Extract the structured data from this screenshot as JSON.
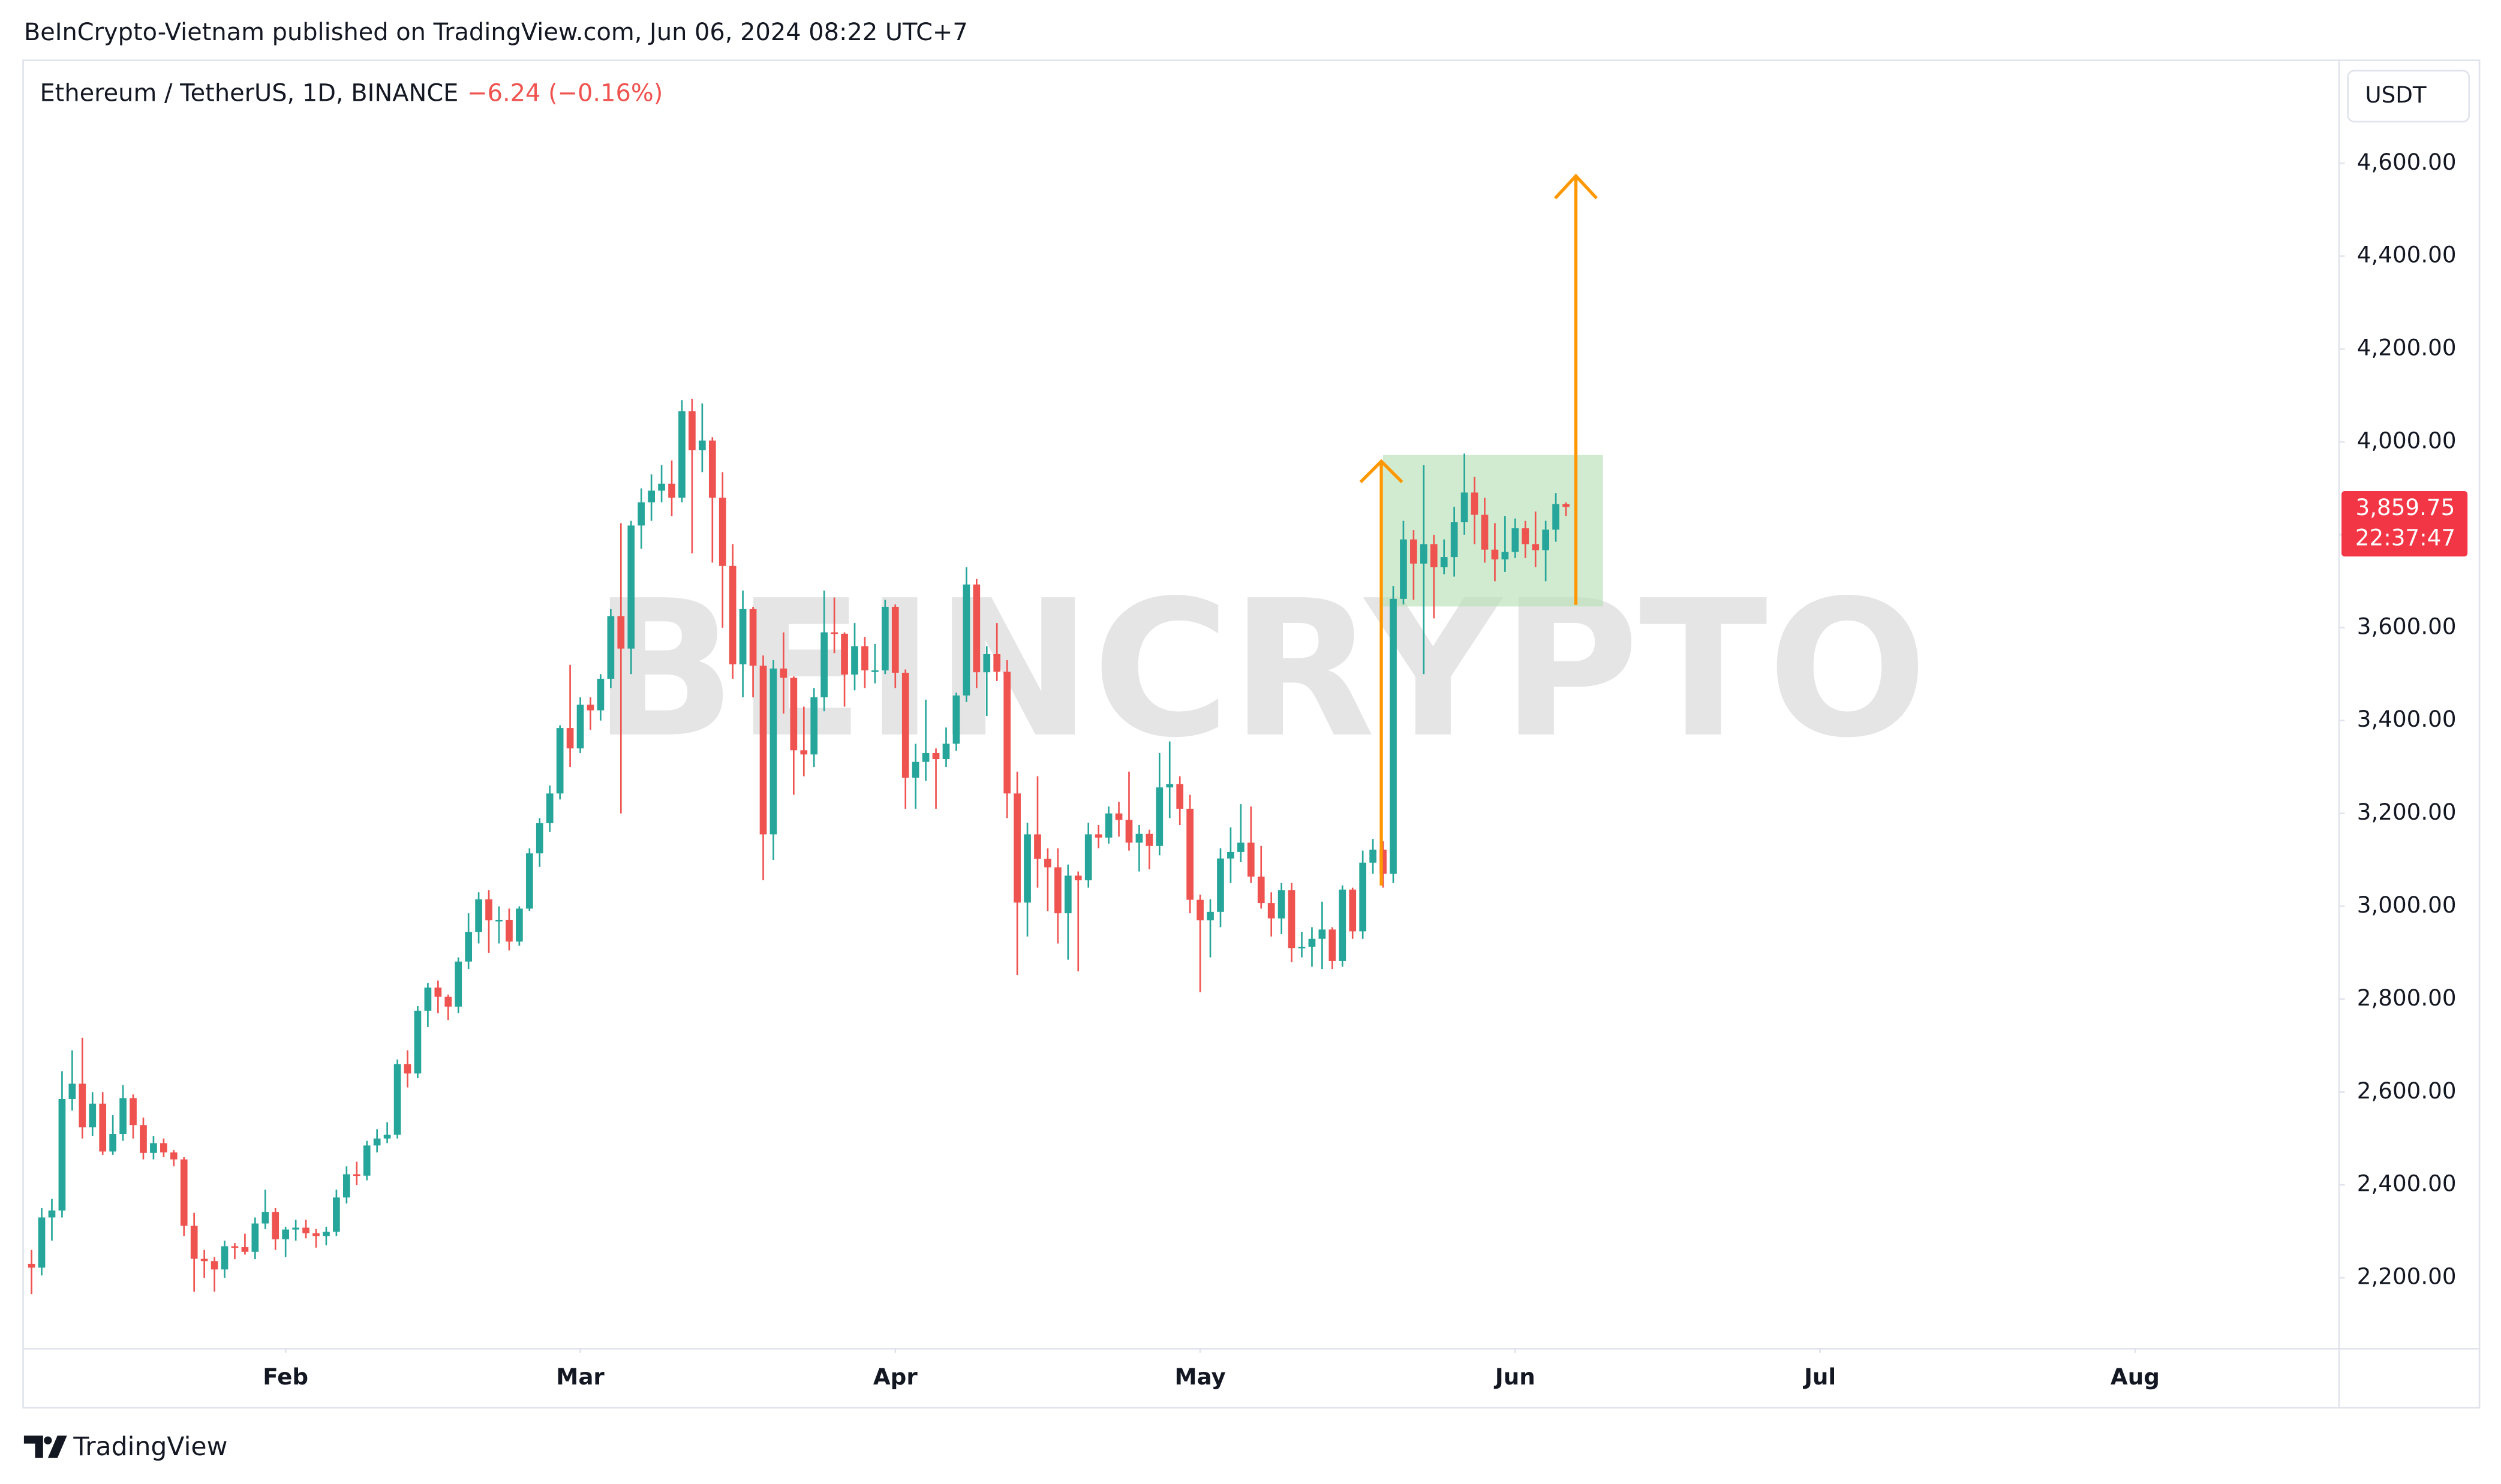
{
  "header": "BeInCrypto-Vietnam published on TradingView.com, Jun 06, 2024 08:22 UTC+7",
  "footer": "TradingView",
  "chart_data": {
    "type": "candlestick",
    "title": "Ethereum / TetherUS, 1D, BINANCE",
    "change_label": "−6.24 (−0.16%)",
    "currency": "USDT",
    "watermark": "BEINCRYPTO",
    "up_color": "#26a69a",
    "down_color": "#ef5350",
    "grid": false,
    "xlim": [
      -0.75,
      227
    ],
    "xticks": [
      {
        "value": 25,
        "label": "Feb"
      },
      {
        "value": 54,
        "label": "Mar"
      },
      {
        "value": 85,
        "label": "Apr"
      },
      {
        "value": 115,
        "label": "May"
      },
      {
        "value": 146,
        "label": "Jun"
      },
      {
        "value": 176,
        "label": "Jul"
      },
      {
        "value": 207,
        "label": "Aug"
      }
    ],
    "ylim": [
      2049,
      4820
    ],
    "yticks": [
      {
        "value": 2200,
        "label": "2,200.00"
      },
      {
        "value": 2400,
        "label": "2,400.00"
      },
      {
        "value": 2600,
        "label": "2,600.00"
      },
      {
        "value": 2800,
        "label": "2,800.00"
      },
      {
        "value": 3000,
        "label": "3,000.00"
      },
      {
        "value": 3200,
        "label": "3,200.00"
      },
      {
        "value": 3400,
        "label": "3,400.00"
      },
      {
        "value": 3600,
        "label": "3,600.00"
      },
      {
        "value": 3800,
        "label": "3,800.00"
      },
      {
        "value": 4000,
        "label": "4,000.00"
      },
      {
        "value": 4200,
        "label": "4,200.00"
      },
      {
        "value": 4400,
        "label": "4,400.00"
      },
      {
        "value": 4600,
        "label": "4,600.00"
      }
    ],
    "last_price": {
      "value": 3859.75,
      "label": "3,859.75"
    },
    "countdown": "22:37:47",
    "ohlc": [
      [
        2230,
        2260,
        2165,
        2222
      ],
      [
        2222,
        2350,
        2205,
        2330
      ],
      [
        2330,
        2370,
        2280,
        2345
      ],
      [
        2345,
        2645,
        2330,
        2585
      ],
      [
        2585,
        2690,
        2560,
        2618
      ],
      [
        2618,
        2717,
        2500,
        2524
      ],
      [
        2524,
        2600,
        2505,
        2575
      ],
      [
        2575,
        2600,
        2465,
        2472
      ],
      [
        2472,
        2550,
        2465,
        2510
      ],
      [
        2510,
        2615,
        2495,
        2587
      ],
      [
        2587,
        2595,
        2500,
        2529
      ],
      [
        2529,
        2545,
        2455,
        2469
      ],
      [
        2469,
        2505,
        2455,
        2490
      ],
      [
        2490,
        2500,
        2460,
        2470
      ],
      [
        2470,
        2475,
        2440,
        2455
      ],
      [
        2455,
        2460,
        2290,
        2312
      ],
      [
        2312,
        2340,
        2170,
        2241
      ],
      [
        2241,
        2260,
        2200,
        2236
      ],
      [
        2236,
        2245,
        2170,
        2218
      ],
      [
        2218,
        2280,
        2200,
        2268
      ],
      [
        2268,
        2275,
        2240,
        2266
      ],
      [
        2266,
        2295,
        2250,
        2256
      ],
      [
        2256,
        2330,
        2240,
        2317
      ],
      [
        2317,
        2390,
        2305,
        2342
      ],
      [
        2342,
        2350,
        2260,
        2283
      ],
      [
        2283,
        2310,
        2245,
        2304
      ],
      [
        2304,
        2325,
        2280,
        2308
      ],
      [
        2308,
        2325,
        2285,
        2296
      ],
      [
        2296,
        2305,
        2265,
        2290
      ],
      [
        2290,
        2310,
        2270,
        2299
      ],
      [
        2299,
        2390,
        2290,
        2373
      ],
      [
        2373,
        2440,
        2360,
        2423
      ],
      [
        2423,
        2450,
        2400,
        2420
      ],
      [
        2420,
        2495,
        2410,
        2485
      ],
      [
        2485,
        2520,
        2470,
        2500
      ],
      [
        2500,
        2535,
        2490,
        2508
      ],
      [
        2508,
        2670,
        2500,
        2660
      ],
      [
        2660,
        2690,
        2610,
        2640
      ],
      [
        2640,
        2785,
        2630,
        2775
      ],
      [
        2775,
        2835,
        2740,
        2825
      ],
      [
        2825,
        2840,
        2770,
        2805
      ],
      [
        2805,
        2810,
        2755,
        2784
      ],
      [
        2784,
        2890,
        2770,
        2881
      ],
      [
        2881,
        2985,
        2865,
        2945
      ],
      [
        2945,
        3030,
        2920,
        3015
      ],
      [
        3015,
        3035,
        2900,
        2970
      ],
      [
        2970,
        3000,
        2920,
        2971
      ],
      [
        2971,
        2995,
        2905,
        2924
      ],
      [
        2924,
        3000,
        2915,
        2995
      ],
      [
        2995,
        3125,
        2990,
        3114
      ],
      [
        3114,
        3190,
        3085,
        3179
      ],
      [
        3179,
        3260,
        3160,
        3243
      ],
      [
        3243,
        3390,
        3230,
        3384
      ],
      [
        3384,
        3520,
        3300,
        3340
      ],
      [
        3340,
        3450,
        3330,
        3434
      ],
      [
        3434,
        3450,
        3380,
        3422
      ],
      [
        3422,
        3500,
        3400,
        3490
      ],
      [
        3490,
        3640,
        3470,
        3625
      ],
      [
        3625,
        3825,
        3200,
        3555
      ],
      [
        3555,
        3830,
        3500,
        3820
      ],
      [
        3820,
        3900,
        3770,
        3870
      ],
      [
        3870,
        3930,
        3830,
        3895
      ],
      [
        3895,
        3950,
        3870,
        3910
      ],
      [
        3910,
        3960,
        3840,
        3880
      ],
      [
        3880,
        4090,
        3870,
        4066
      ],
      [
        4066,
        4093,
        3760,
        3982
      ],
      [
        3982,
        4083,
        3935,
        4003
      ],
      [
        4003,
        4010,
        3740,
        3880
      ],
      [
        3880,
        3935,
        3600,
        3733
      ],
      [
        3733,
        3780,
        3490,
        3521
      ],
      [
        3521,
        3680,
        3450,
        3640
      ],
      [
        3640,
        3645,
        3450,
        3518
      ],
      [
        3518,
        3540,
        3056,
        3155
      ],
      [
        3155,
        3530,
        3100,
        3512
      ],
      [
        3512,
        3590,
        3415,
        3492
      ],
      [
        3492,
        3495,
        3240,
        3336
      ],
      [
        3336,
        3430,
        3280,
        3327
      ],
      [
        3327,
        3470,
        3300,
        3450
      ],
      [
        3450,
        3680,
        3420,
        3590
      ],
      [
        3590,
        3665,
        3545,
        3587
      ],
      [
        3587,
        3590,
        3430,
        3499
      ],
      [
        3499,
        3610,
        3465,
        3560
      ],
      [
        3560,
        3580,
        3470,
        3508
      ],
      [
        3508,
        3565,
        3480,
        3508
      ],
      [
        3508,
        3660,
        3500,
        3645
      ],
      [
        3645,
        3650,
        3470,
        3503
      ],
      [
        3503,
        3510,
        3210,
        3277
      ],
      [
        3277,
        3350,
        3210,
        3311
      ],
      [
        3311,
        3445,
        3270,
        3330
      ],
      [
        3330,
        3340,
        3210,
        3317
      ],
      [
        3317,
        3385,
        3300,
        3350
      ],
      [
        3350,
        3460,
        3335,
        3454
      ],
      [
        3454,
        3730,
        3440,
        3693
      ],
      [
        3693,
        3705,
        3470,
        3504
      ],
      [
        3504,
        3560,
        3410,
        3543
      ],
      [
        3543,
        3610,
        3485,
        3505
      ],
      [
        3505,
        3530,
        3190,
        3243
      ],
      [
        3243,
        3290,
        2852,
        3008
      ],
      [
        3008,
        3180,
        2935,
        3155
      ],
      [
        3155,
        3280,
        3040,
        3102
      ],
      [
        3102,
        3125,
        2990,
        3084
      ],
      [
        3084,
        3125,
        2920,
        2985
      ],
      [
        2985,
        3090,
        2885,
        3066
      ],
      [
        3066,
        3075,
        2860,
        3056
      ],
      [
        3056,
        3180,
        3040,
        3155
      ],
      [
        3155,
        3175,
        3125,
        3148
      ],
      [
        3148,
        3215,
        3135,
        3200
      ],
      [
        3200,
        3225,
        3150,
        3186
      ],
      [
        3186,
        3290,
        3120,
        3137
      ],
      [
        3137,
        3175,
        3075,
        3156
      ],
      [
        3156,
        3165,
        3080,
        3130
      ],
      [
        3130,
        3330,
        3110,
        3256
      ],
      [
        3256,
        3355,
        3190,
        3263
      ],
      [
        3263,
        3280,
        3175,
        3210
      ],
      [
        3210,
        3240,
        2985,
        3014
      ],
      [
        3014,
        3025,
        2815,
        2970
      ],
      [
        2970,
        3015,
        2890,
        2988
      ],
      [
        2988,
        3125,
        2955,
        3103
      ],
      [
        3103,
        3170,
        3050,
        3117
      ],
      [
        3117,
        3220,
        3095,
        3137
      ],
      [
        3137,
        3215,
        3050,
        3064
      ],
      [
        3064,
        3130,
        2995,
        3007
      ],
      [
        3007,
        3030,
        2935,
        2974
      ],
      [
        2974,
        3050,
        2940,
        3035
      ],
      [
        3035,
        3050,
        2880,
        2910
      ],
      [
        2910,
        2945,
        2890,
        2913
      ],
      [
        2913,
        2955,
        2870,
        2930
      ],
      [
        2930,
        3010,
        2865,
        2950
      ],
      [
        2950,
        2955,
        2865,
        2882
      ],
      [
        2882,
        3045,
        2870,
        3036
      ],
      [
        3036,
        3040,
        2930,
        2946
      ],
      [
        2946,
        3120,
        2930,
        3094
      ],
      [
        3094,
        3145,
        3070,
        3122
      ],
      [
        3122,
        3140,
        3040,
        3070
      ],
      [
        3070,
        3690,
        3050,
        3662
      ],
      [
        3662,
        3830,
        3650,
        3790
      ],
      [
        3790,
        3810,
        3660,
        3738
      ],
      [
        3738,
        3950,
        3500,
        3780
      ],
      [
        3780,
        3800,
        3620,
        3730
      ],
      [
        3730,
        3790,
        3715,
        3752
      ],
      [
        3752,
        3860,
        3710,
        3827
      ],
      [
        3827,
        3975,
        3800,
        3891
      ],
      [
        3891,
        3925,
        3780,
        3843
      ],
      [
        3843,
        3880,
        3740,
        3768
      ],
      [
        3768,
        3825,
        3700,
        3747
      ],
      [
        3747,
        3840,
        3720,
        3763
      ],
      [
        3763,
        3835,
        3750,
        3814
      ],
      [
        3814,
        3830,
        3750,
        3780
      ],
      [
        3780,
        3850,
        3730,
        3767
      ],
      [
        3767,
        3830,
        3700,
        3811
      ],
      [
        3811,
        3890,
        3785,
        3865.99
      ],
      [
        3865.99,
        3870,
        3840,
        3859.75
      ]
    ]
  }
}
